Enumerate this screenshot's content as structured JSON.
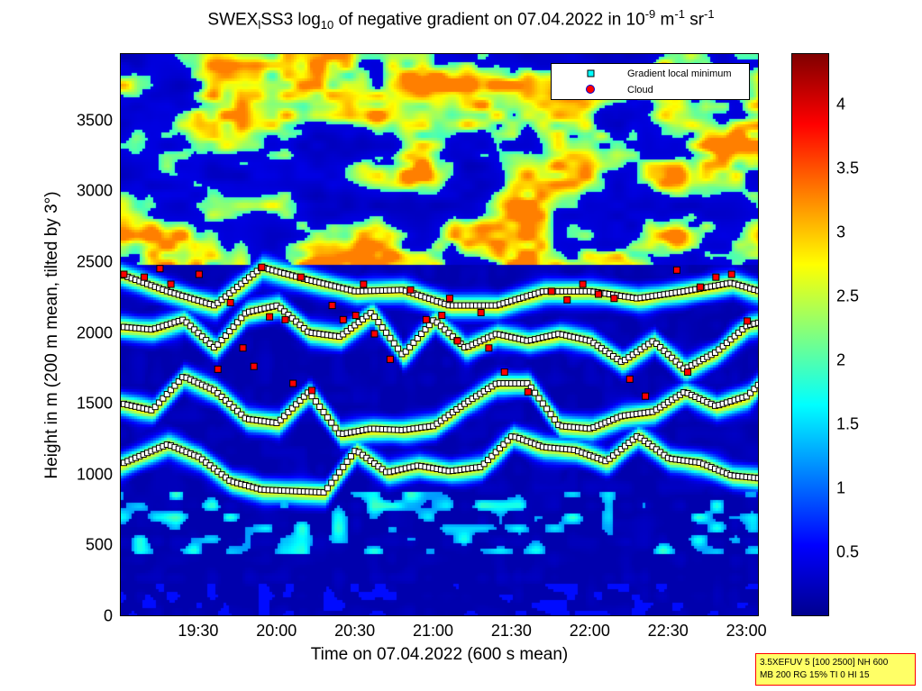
{
  "title": {
    "part1": "SWEX",
    "sub1": "l",
    "part2": "SS3 log",
    "sub2": "10",
    "part3": " of negative gradient on 07.04.2022 in 10",
    "sup1": "-9",
    "part4": " m",
    "sup2": "-1",
    "part5": " sr",
    "sup3": "-1"
  },
  "legend": {
    "entries": [
      {
        "label": "Gradient local minimum",
        "marker": "square",
        "color": "#00ffff"
      },
      {
        "label": "Cloud",
        "marker": "circle",
        "color": "#ff0000"
      }
    ]
  },
  "infobox": {
    "line1": "3.5XEFUV 5 [100 2500] NH 600",
    "line2": "MB 200 RG 15% TI 0 HI 15"
  },
  "colors": {
    "plot_background": "#00008f",
    "marker_fill": "#ffffff",
    "cloud_color": "#ff0000"
  },
  "chart_data": {
    "type": "heatmap",
    "title": "SWEXlSS3 log10 of negative gradient on 07.04.2022 in 10^-9 m^-1 sr^-1",
    "xlabel": "Time on 07.04.2022 (600 s mean)",
    "ylabel": "Height in m (200 m mean, tilted by 3°)",
    "x_unit": "hours",
    "xlim": [
      19.0,
      23.08
    ],
    "ylim": [
      0,
      3975
    ],
    "xticks": [
      19.5,
      20.0,
      20.5,
      21.0,
      21.5,
      22.0,
      22.5,
      23.0
    ],
    "xticklabels": [
      "19:30",
      "20:00",
      "20:30",
      "21:00",
      "21:30",
      "22:00",
      "22:30",
      "23:00"
    ],
    "yticks": [
      0,
      500,
      1000,
      1500,
      2000,
      2500,
      3000,
      3500
    ],
    "yticklabels": [
      "0",
      "500",
      "1000",
      "1500",
      "2000",
      "2500",
      "3000",
      "3500"
    ],
    "colorbar": {
      "range": [
        0,
        4.4
      ],
      "ticks": [
        0.5,
        1,
        1.5,
        2,
        2.5,
        3,
        3.5,
        4
      ],
      "ticklabels": [
        "0.5",
        "1",
        "1.5",
        "2",
        "2.5",
        "3",
        "3.5",
        "4"
      ],
      "colormap": "jet"
    },
    "layers": [
      {
        "name": "layer-1000",
        "points": [
          [
            19.0,
            1080
          ],
          [
            19.3,
            1220
          ],
          [
            19.5,
            1130
          ],
          [
            19.7,
            960
          ],
          [
            19.9,
            900
          ],
          [
            20.1,
            890
          ],
          [
            20.3,
            880
          ],
          [
            20.5,
            1180
          ],
          [
            20.7,
            1020
          ],
          [
            20.9,
            1070
          ],
          [
            21.1,
            1030
          ],
          [
            21.3,
            1060
          ],
          [
            21.5,
            1280
          ],
          [
            21.7,
            1200
          ],
          [
            21.9,
            1180
          ],
          [
            22.1,
            1100
          ],
          [
            22.3,
            1280
          ],
          [
            22.5,
            1120
          ],
          [
            22.7,
            1090
          ],
          [
            22.9,
            1000
          ],
          [
            23.08,
            980
          ]
        ]
      },
      {
        "name": "layer-1500",
        "points": [
          [
            19.0,
            1510
          ],
          [
            19.2,
            1460
          ],
          [
            19.4,
            1700
          ],
          [
            19.6,
            1600
          ],
          [
            19.8,
            1400
          ],
          [
            20.0,
            1370
          ],
          [
            20.2,
            1590
          ],
          [
            20.4,
            1290
          ],
          [
            20.6,
            1330
          ],
          [
            20.8,
            1320
          ],
          [
            21.0,
            1350
          ],
          [
            21.2,
            1510
          ],
          [
            21.4,
            1650
          ],
          [
            21.6,
            1650
          ],
          [
            21.8,
            1350
          ],
          [
            22.0,
            1330
          ],
          [
            22.2,
            1420
          ],
          [
            22.4,
            1450
          ],
          [
            22.6,
            1590
          ],
          [
            22.8,
            1490
          ],
          [
            23.0,
            1560
          ],
          [
            23.08,
            1650
          ]
        ]
      },
      {
        "name": "layer-2000",
        "points": [
          [
            19.0,
            2050
          ],
          [
            19.2,
            2030
          ],
          [
            19.4,
            2100
          ],
          [
            19.6,
            1900
          ],
          [
            19.8,
            2150
          ],
          [
            20.0,
            2200
          ],
          [
            20.2,
            2010
          ],
          [
            20.4,
            1980
          ],
          [
            20.6,
            2150
          ],
          [
            20.8,
            1850
          ],
          [
            21.0,
            2100
          ],
          [
            21.2,
            1900
          ],
          [
            21.4,
            2000
          ],
          [
            21.6,
            1950
          ],
          [
            21.8,
            2000
          ],
          [
            22.0,
            1950
          ],
          [
            22.2,
            1800
          ],
          [
            22.4,
            1950
          ],
          [
            22.6,
            1750
          ],
          [
            22.8,
            1870
          ],
          [
            23.0,
            2060
          ],
          [
            23.08,
            2080
          ]
        ]
      },
      {
        "name": "layer-2300",
        "points": [
          [
            19.0,
            2420
          ],
          [
            19.3,
            2300
          ],
          [
            19.6,
            2200
          ],
          [
            19.9,
            2470
          ],
          [
            20.2,
            2380
          ],
          [
            20.5,
            2300
          ],
          [
            20.8,
            2310
          ],
          [
            21.1,
            2200
          ],
          [
            21.4,
            2200
          ],
          [
            21.7,
            2300
          ],
          [
            22.0,
            2300
          ],
          [
            22.3,
            2250
          ],
          [
            22.6,
            2300
          ],
          [
            22.9,
            2360
          ],
          [
            23.08,
            2300
          ]
        ]
      }
    ],
    "cloud_points": [
      [
        19.02,
        2420
      ],
      [
        19.15,
        2400
      ],
      [
        19.25,
        2460
      ],
      [
        19.32,
        2350
      ],
      [
        19.5,
        2420
      ],
      [
        19.62,
        1750
      ],
      [
        19.7,
        2220
      ],
      [
        19.78,
        1900
      ],
      [
        19.85,
        1770
      ],
      [
        19.9,
        2470
      ],
      [
        19.95,
        2120
      ],
      [
        20.05,
        2100
      ],
      [
        20.1,
        1650
      ],
      [
        20.15,
        2400
      ],
      [
        20.22,
        1600
      ],
      [
        20.35,
        2200
      ],
      [
        20.42,
        2100
      ],
      [
        20.5,
        2130
      ],
      [
        20.55,
        2350
      ],
      [
        20.62,
        2000
      ],
      [
        20.72,
        1820
      ],
      [
        20.85,
        2310
      ],
      [
        20.95,
        2100
      ],
      [
        21.05,
        2130
      ],
      [
        21.1,
        2250
      ],
      [
        21.15,
        1950
      ],
      [
        21.3,
        2150
      ],
      [
        21.35,
        1900
      ],
      [
        21.45,
        1730
      ],
      [
        21.6,
        1590
      ],
      [
        21.75,
        2300
      ],
      [
        21.85,
        2240
      ],
      [
        21.95,
        2350
      ],
      [
        22.05,
        2280
      ],
      [
        22.15,
        2250
      ],
      [
        22.25,
        1680
      ],
      [
        22.35,
        1560
      ],
      [
        22.55,
        2450
      ],
      [
        22.62,
        1730
      ],
      [
        22.7,
        2330
      ],
      [
        22.8,
        2400
      ],
      [
        22.9,
        2420
      ],
      [
        23.0,
        2090
      ]
    ]
  }
}
